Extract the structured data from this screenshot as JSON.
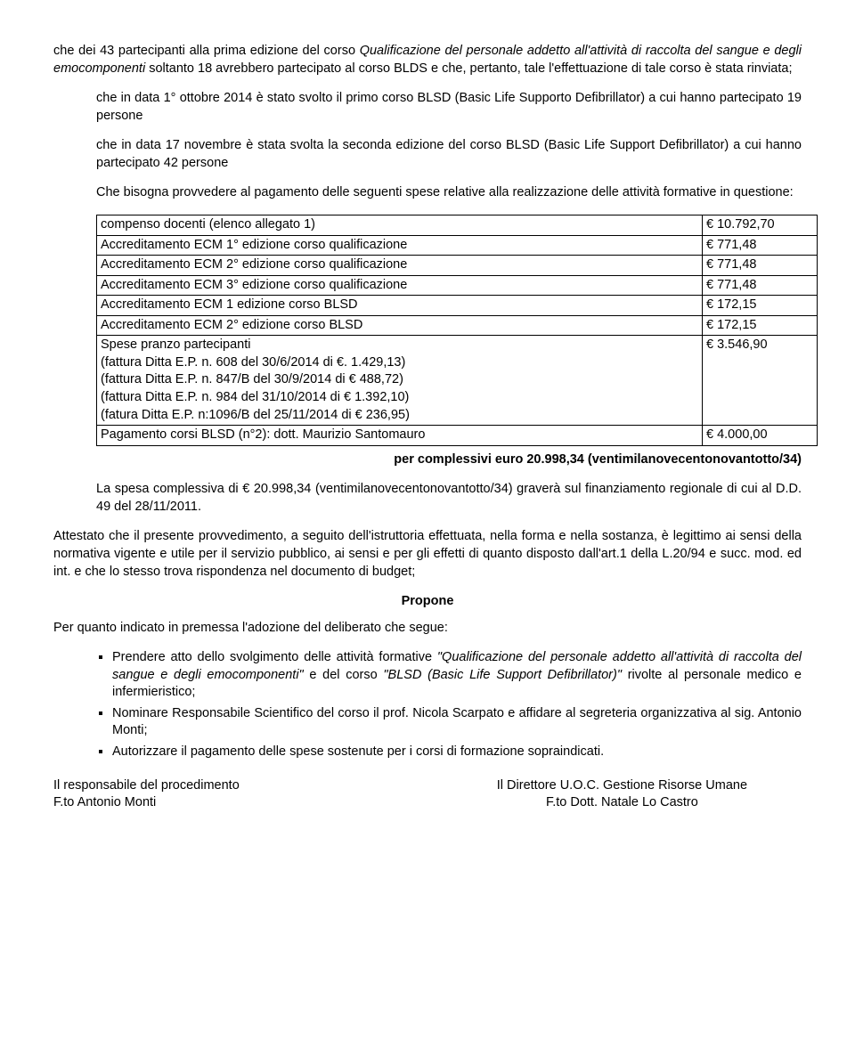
{
  "p1": "che dei 43 partecipanti alla prima edizione del corso Qualificazione del personale addetto all'attività di raccolta del sangue e degli emocomponenti soltanto 18 avrebbero partecipato al corso BLDS e che, pertanto, tale l'effettuazione di tale corso è stata rinviata;",
  "p1_italic_start": "Qualificazione del personale addetto all'attività di raccolta del sangue e degli emocomponenti",
  "p2": "che in data 1° ottobre 2014 è stato svolto il primo corso BLSD (Basic Life Supporto Defibrillator) a cui hanno partecipato 19 persone",
  "p3": "che in data 17 novembre è stata svolta la seconda edizione del corso BLSD (Basic Life Support Defibrillator) a cui hanno partecipato 42 persone",
  "p4": "Che bisogna provvedere al pagamento delle seguenti spese relative alla realizzazione delle attività formative in questione:",
  "table": [
    [
      "compenso docenti (elenco allegato 1)",
      "€ 10.792,70"
    ],
    [
      "Accreditamento ECM 1° edizione corso qualificazione",
      "€    771,48"
    ],
    [
      "Accreditamento ECM 2° edizione corso qualificazione",
      "€    771,48"
    ],
    [
      "Accreditamento ECM 3° edizione corso qualificazione",
      "€    771,48"
    ],
    [
      "Accreditamento ECM 1 edizione corso BLSD",
      "€    172,15"
    ],
    [
      "Accreditamento ECM 2° edizione corso BLSD",
      "€    172,15"
    ],
    [
      "Spese pranzo partecipanti\n(fattura Ditta E.P. n. 608 del 30/6/2014 di €. 1.429,13)\n(fattura Ditta E.P. n. 847/B del 30/9/2014 di € 488,72)\n(fattura Ditta E.P. n. 984 del 31/10/2014 di € 1.392,10)\n(fatura Ditta E.P. n:1096/B del 25/11/2014 di € 236,95)",
      "€ 3.546,90"
    ],
    [
      "Pagamento corsi BLSD (n°2): dott. Maurizio Santomauro",
      "€ 4.000,00"
    ]
  ],
  "total_line": "per complessivi euro 20.998,34 (ventimilanovecentonovantotto/34)",
  "p5": "La spesa complessiva di € 20.998,34 (ventimilanovecentonovantotto/34) graverà sul finanziamento regionale di cui al D.D. 49 del  28/11/2011.",
  "p6": "Attestato che il presente provvedimento, a seguito dell'istruttoria effettuata, nella forma e nella sostanza, è legittimo ai sensi della normativa vigente e utile per il servizio pubblico, ai sensi e per gli effetti di quanto disposto dall'art.1 della L.20/94 e succ. mod. ed int. e che lo stesso trova rispondenza nel documento di budget;",
  "propone": "Propone",
  "p7": "Per quanto indicato in premessa l'adozione del deliberato che segue:",
  "bullets": {
    "b1_pre": "Prendere atto dello svolgimento delle attività formative ",
    "b1_it1": "\"Qualificazione del personale addetto all'attività di raccolta del sangue e degli emocomponenti\"",
    "b1_mid": " e del corso ",
    "b1_it2": "\"BLSD (Basic Life Support Defibrillator)\" ",
    "b1_post": "rivolte al personale medico e infermieristico;",
    "b2": "Nominare Responsabile Scientifico del corso il prof. Nicola Scarpato e affidare al segreteria organizzativa al sig. Antonio Monti;",
    "b3": "Autorizzare il pagamento delle spese sostenute per i corsi di formazione sopraindicati."
  },
  "sig": {
    "left1": "Il responsabile del procedimento",
    "left2": "F.to   Antonio Monti",
    "right1": "Il Direttore U.O.C. Gestione Risorse Umane",
    "right2": "F.to Dott. Natale Lo Castro"
  }
}
